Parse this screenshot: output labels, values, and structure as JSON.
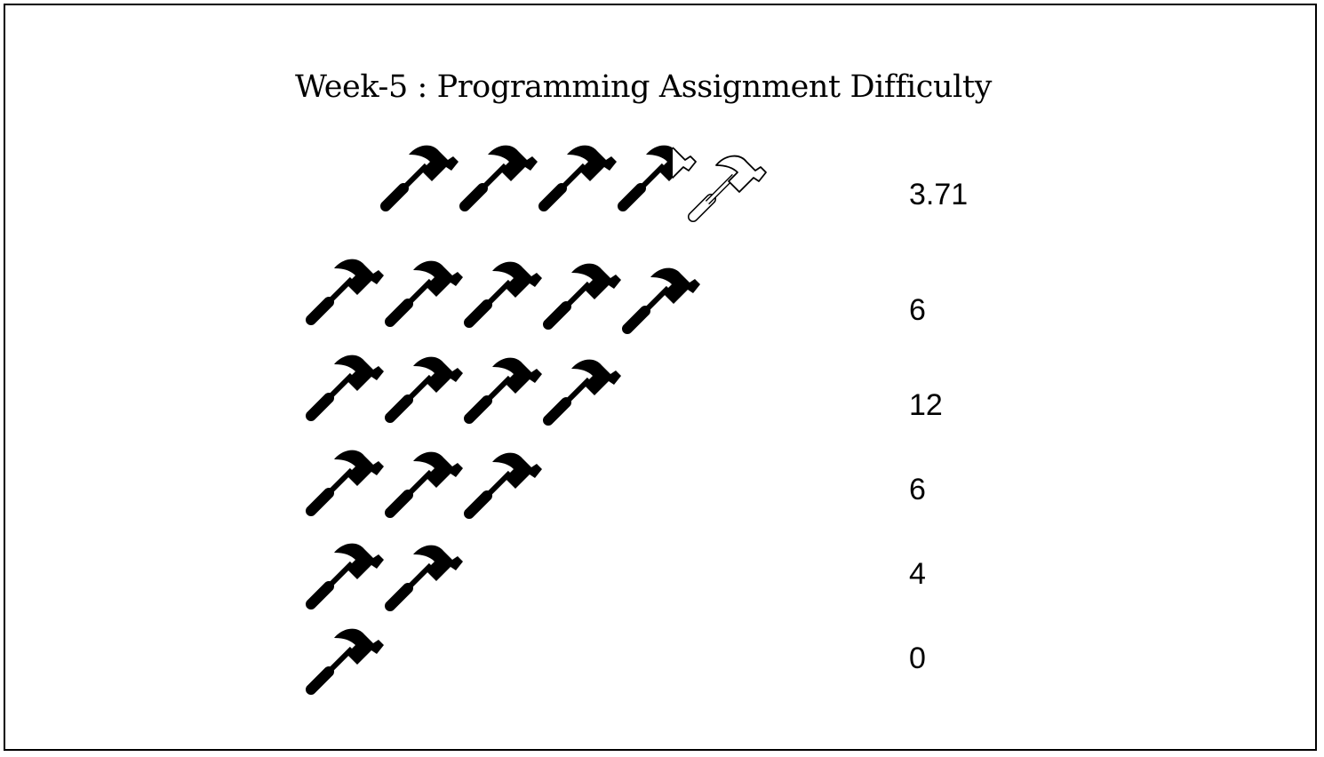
{
  "chart_data": {
    "type": "pictograph",
    "title": "Week-5 : Programming Assignment Difficulty",
    "icon": "hammer-icon",
    "rows": [
      {
        "icon_count": 5,
        "label": "3.71",
        "partial": true
      },
      {
        "icon_count": 5,
        "label": "6"
      },
      {
        "icon_count": 4,
        "label": "12"
      },
      {
        "icon_count": 3,
        "label": "6"
      },
      {
        "icon_count": 2,
        "label": "4"
      },
      {
        "icon_count": 1,
        "label": "0"
      }
    ]
  }
}
